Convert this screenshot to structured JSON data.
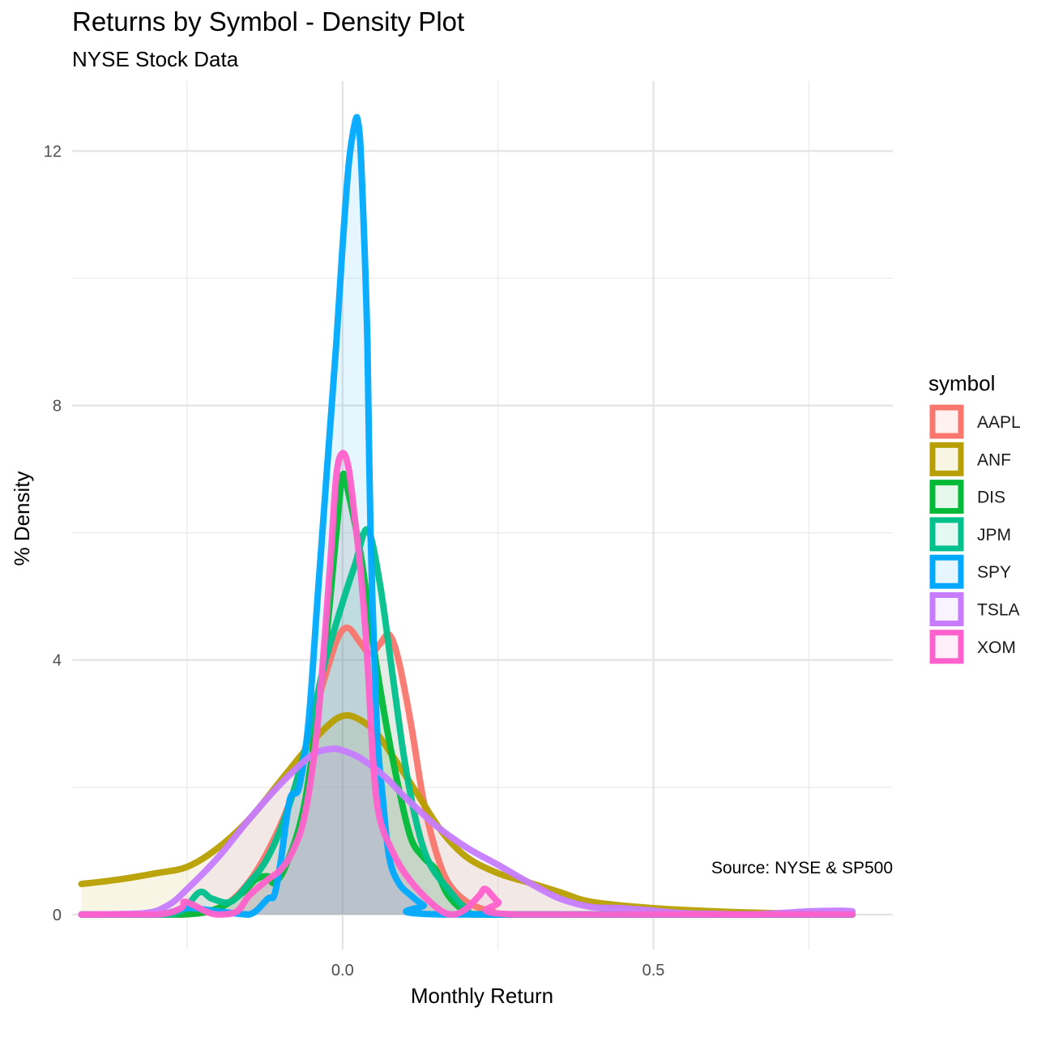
{
  "title": "Returns by Symbol - Density Plot",
  "subtitle": "NYSE Stock Data",
  "caption": "Source: NYSE & SP500",
  "chart_data": {
    "type": "area",
    "xlabel": "Monthly Return",
    "ylabel": "% Density",
    "xlim": [
      -0.435,
      0.885
    ],
    "ylim": [
      -0.55,
      13.1
    ],
    "x_ticks": [
      {
        "value": 0.0,
        "label": "0.0"
      },
      {
        "value": 0.5,
        "label": "0.5"
      }
    ],
    "x_minor": [
      -0.25,
      0.25,
      0.75
    ],
    "y_ticks": [
      {
        "value": 0,
        "label": "0"
      },
      {
        "value": 4,
        "label": "4"
      },
      {
        "value": 8,
        "label": "8"
      },
      {
        "value": 12,
        "label": "12"
      }
    ],
    "y_minor": [
      2,
      6,
      10
    ],
    "grid": true,
    "legend": {
      "title": "symbol",
      "placement": "right"
    },
    "series": [
      {
        "name": "AAPL",
        "color": "#F8766D",
        "points": [
          [
            -0.42,
            0
          ],
          [
            -0.26,
            0
          ],
          [
            -0.2,
            0.1
          ],
          [
            -0.16,
            0.4
          ],
          [
            -0.12,
            1.0
          ],
          [
            -0.08,
            1.9
          ],
          [
            -0.05,
            3.0
          ],
          [
            -0.02,
            4.0
          ],
          [
            -0.005,
            4.4
          ],
          [
            0.01,
            4.5
          ],
          [
            0.03,
            4.25
          ],
          [
            0.045,
            4.1
          ],
          [
            0.06,
            4.25
          ],
          [
            0.075,
            4.4
          ],
          [
            0.09,
            4.0
          ],
          [
            0.11,
            3.0
          ],
          [
            0.13,
            1.8
          ],
          [
            0.15,
            1.0
          ],
          [
            0.17,
            0.5
          ],
          [
            0.2,
            0.2
          ],
          [
            0.24,
            0.05
          ],
          [
            0.3,
            0
          ],
          [
            0.82,
            0
          ]
        ]
      },
      {
        "name": "ANF",
        "color": "#B79F00",
        "points": [
          [
            -0.42,
            0.48
          ],
          [
            -0.36,
            0.55
          ],
          [
            -0.3,
            0.65
          ],
          [
            -0.25,
            0.75
          ],
          [
            -0.2,
            1.05
          ],
          [
            -0.15,
            1.5
          ],
          [
            -0.1,
            2.1
          ],
          [
            -0.05,
            2.7
          ],
          [
            -0.02,
            3.0
          ],
          [
            0.0,
            3.12
          ],
          [
            0.02,
            3.1
          ],
          [
            0.05,
            2.9
          ],
          [
            0.08,
            2.5
          ],
          [
            0.12,
            1.9
          ],
          [
            0.16,
            1.3
          ],
          [
            0.2,
            0.9
          ],
          [
            0.25,
            0.65
          ],
          [
            0.3,
            0.5
          ],
          [
            0.35,
            0.35
          ],
          [
            0.4,
            0.2
          ],
          [
            0.5,
            0.1
          ],
          [
            0.6,
            0.05
          ],
          [
            0.7,
            0.02
          ],
          [
            0.82,
            0
          ]
        ]
      },
      {
        "name": "DIS",
        "color": "#00BA38",
        "points": [
          [
            -0.42,
            0
          ],
          [
            -0.26,
            0
          ],
          [
            -0.2,
            0.1
          ],
          [
            -0.16,
            0.35
          ],
          [
            -0.14,
            0.55
          ],
          [
            -0.12,
            0.6
          ],
          [
            -0.11,
            0.5
          ],
          [
            -0.09,
            0.8
          ],
          [
            -0.06,
            1.8
          ],
          [
            -0.03,
            4.0
          ],
          [
            -0.01,
            6.0
          ],
          [
            0.0,
            6.9
          ],
          [
            0.01,
            6.6
          ],
          [
            0.03,
            5.6
          ],
          [
            0.05,
            4.2
          ],
          [
            0.07,
            3.0
          ],
          [
            0.09,
            2.0
          ],
          [
            0.11,
            1.2
          ],
          [
            0.13,
            0.9
          ],
          [
            0.15,
            0.7
          ],
          [
            0.17,
            0.3
          ],
          [
            0.2,
            0.05
          ],
          [
            0.25,
            0
          ],
          [
            0.82,
            0
          ]
        ]
      },
      {
        "name": "JPM",
        "color": "#00C08B",
        "points": [
          [
            -0.42,
            0
          ],
          [
            -0.3,
            0
          ],
          [
            -0.26,
            0.05
          ],
          [
            -0.23,
            0.35
          ],
          [
            -0.21,
            0.25
          ],
          [
            -0.18,
            0.2
          ],
          [
            -0.15,
            0.5
          ],
          [
            -0.12,
            0.9
          ],
          [
            -0.09,
            1.6
          ],
          [
            -0.06,
            2.6
          ],
          [
            -0.03,
            3.9
          ],
          [
            0.0,
            4.9
          ],
          [
            0.02,
            5.5
          ],
          [
            0.04,
            6.05
          ],
          [
            0.06,
            5.2
          ],
          [
            0.08,
            3.8
          ],
          [
            0.1,
            2.4
          ],
          [
            0.12,
            1.4
          ],
          [
            0.14,
            0.8
          ],
          [
            0.17,
            0.4
          ],
          [
            0.2,
            0.1
          ],
          [
            0.25,
            0
          ],
          [
            0.82,
            0
          ]
        ]
      },
      {
        "name": "SPY",
        "color": "#00A9FF",
        "points": [
          [
            -0.42,
            0
          ],
          [
            -0.3,
            0
          ],
          [
            -0.25,
            0.1
          ],
          [
            -0.2,
            0.05
          ],
          [
            -0.15,
            0.0
          ],
          [
            -0.12,
            0.25
          ],
          [
            -0.11,
            0.3
          ],
          [
            -0.1,
            0.8
          ],
          [
            -0.085,
            1.8
          ],
          [
            -0.07,
            2.0
          ],
          [
            -0.055,
            3.0
          ],
          [
            -0.04,
            5.0
          ],
          [
            -0.025,
            7.0
          ],
          [
            -0.01,
            9.0
          ],
          [
            0.0,
            10.5
          ],
          [
            0.01,
            11.8
          ],
          [
            0.02,
            12.45
          ],
          [
            0.025,
            12.45
          ],
          [
            0.03,
            11.8
          ],
          [
            0.04,
            9.0
          ],
          [
            0.045,
            6.0
          ],
          [
            0.055,
            3.0
          ],
          [
            0.065,
            1.8
          ],
          [
            0.075,
            0.9
          ],
          [
            0.09,
            0.5
          ],
          [
            0.11,
            0.3
          ],
          [
            0.13,
            0.15
          ],
          [
            0.16,
            0
          ],
          [
            0.82,
            0
          ]
        ]
      },
      {
        "name": "TSLA",
        "color": "#C77CFF",
        "points": [
          [
            -0.42,
            0
          ],
          [
            -0.32,
            0.02
          ],
          [
            -0.28,
            0.15
          ],
          [
            -0.25,
            0.4
          ],
          [
            -0.2,
            0.9
          ],
          [
            -0.15,
            1.5
          ],
          [
            -0.1,
            2.05
          ],
          [
            -0.05,
            2.5
          ],
          [
            -0.02,
            2.6
          ],
          [
            0.0,
            2.58
          ],
          [
            0.03,
            2.45
          ],
          [
            0.07,
            2.15
          ],
          [
            0.1,
            1.85
          ],
          [
            0.15,
            1.4
          ],
          [
            0.2,
            1.05
          ],
          [
            0.25,
            0.78
          ],
          [
            0.3,
            0.5
          ],
          [
            0.35,
            0.25
          ],
          [
            0.4,
            0.12
          ],
          [
            0.45,
            0.1
          ],
          [
            0.5,
            0.06
          ],
          [
            0.55,
            0.02
          ],
          [
            0.6,
            0.01
          ],
          [
            0.65,
            0.0
          ],
          [
            0.7,
            0.02
          ],
          [
            0.75,
            0.05
          ],
          [
            0.8,
            0.06
          ],
          [
            0.82,
            0.05
          ]
        ]
      },
      {
        "name": "XOM",
        "color": "#FF61CC",
        "points": [
          [
            -0.42,
            0
          ],
          [
            -0.3,
            0
          ],
          [
            -0.26,
            0.1
          ],
          [
            -0.255,
            0.2
          ],
          [
            -0.24,
            0.15
          ],
          [
            -0.22,
            0.05
          ],
          [
            -0.2,
            0.0
          ],
          [
            -0.17,
            0.05
          ],
          [
            -0.15,
            0.3
          ],
          [
            -0.12,
            0.55
          ],
          [
            -0.1,
            0.7
          ],
          [
            -0.08,
            1.0
          ],
          [
            -0.06,
            1.6
          ],
          [
            -0.04,
            3.0
          ],
          [
            -0.02,
            5.5
          ],
          [
            -0.01,
            6.9
          ],
          [
            0.0,
            7.25
          ],
          [
            0.01,
            7.0
          ],
          [
            0.02,
            6.2
          ],
          [
            0.03,
            5.3
          ],
          [
            0.04,
            4.0
          ],
          [
            0.05,
            2.3
          ],
          [
            0.06,
            1.5
          ],
          [
            0.08,
            1.0
          ],
          [
            0.1,
            0.65
          ],
          [
            0.13,
            0.3
          ],
          [
            0.16,
            0.05
          ],
          [
            0.18,
            0.0
          ],
          [
            0.2,
            0.1
          ],
          [
            0.22,
            0.3
          ],
          [
            0.23,
            0.4
          ],
          [
            0.25,
            0.2
          ],
          [
            0.28,
            0.0
          ],
          [
            0.82,
            0
          ]
        ]
      }
    ]
  }
}
